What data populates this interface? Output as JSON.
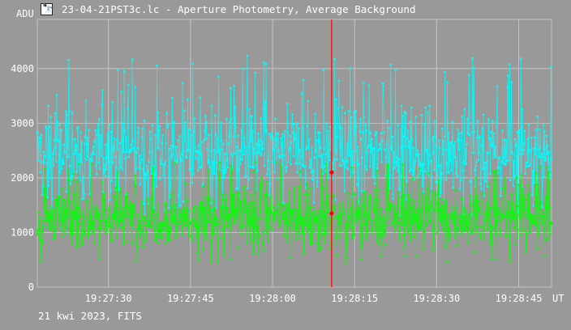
{
  "window": {
    "title": "23-04-21PST3c.lc - Aperture Photometry, Average Background",
    "icon": "telescope-app-icon"
  },
  "footer": {
    "text": "21 kwi 2023, FITS"
  },
  "colors": {
    "background": "#999999",
    "grid": "#c4c4c4",
    "series_cyan": "#00ffff",
    "series_green": "#00ff00",
    "cursor": "#ff0000",
    "text": "#ffffff"
  },
  "chart_data": {
    "type": "scatter",
    "ylabel": "ADU",
    "xlabel": "UT",
    "y_ticks": [
      "0",
      "1000",
      "2000",
      "3000",
      "4000"
    ],
    "y_tick_values": [
      0,
      1000,
      2000,
      3000,
      4000
    ],
    "ylim": [
      0,
      4900
    ],
    "x_ticks": [
      "19:27:30",
      "19:27:45",
      "19:28:00",
      "19:28:15",
      "19:28:30",
      "19:28:45"
    ],
    "x_tick_seconds": [
      30,
      45,
      60,
      75,
      90,
      105
    ],
    "xlim_seconds": [
      17,
      111
    ],
    "grid": true,
    "cursor_x_seconds": 70.8,
    "cursor_values": [
      2100,
      1350
    ],
    "series": [
      {
        "mean": 2450,
        "spread": 380,
        "spike_max": 4250
      },
      {
        "mean": 1270,
        "spread": 260,
        "spike_max": 2300
      }
    ]
  }
}
